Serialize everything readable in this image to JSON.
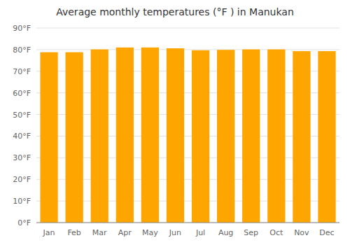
{
  "chart_data": {
    "type": "bar",
    "title": "Average monthly temperatures (°F ) in Manukan",
    "categories": [
      "Jan",
      "Feb",
      "Mar",
      "Apr",
      "May",
      "Jun",
      "Jul",
      "Aug",
      "Sep",
      "Oct",
      "Nov",
      "Dec"
    ],
    "values": [
      78.8,
      78.8,
      80.1,
      81.0,
      81.0,
      80.6,
      79.7,
      79.9,
      80.1,
      80.1,
      79.3,
      79.3
    ],
    "color": "#FFA500",
    "ylim": [
      0,
      90
    ],
    "yticks": [
      {
        "value": 0,
        "label": "0°F"
      },
      {
        "value": 10,
        "label": "10°F"
      },
      {
        "value": 20,
        "label": "20°F"
      },
      {
        "value": 30,
        "label": "30°F"
      },
      {
        "value": 40,
        "label": "40°F"
      },
      {
        "value": 50,
        "label": "50°F"
      },
      {
        "value": 60,
        "label": "60°F"
      },
      {
        "value": 70,
        "label": "70°F"
      },
      {
        "value": 80,
        "label": "80°F"
      },
      {
        "value": 90,
        "label": "90°F"
      }
    ],
    "grid": true
  }
}
